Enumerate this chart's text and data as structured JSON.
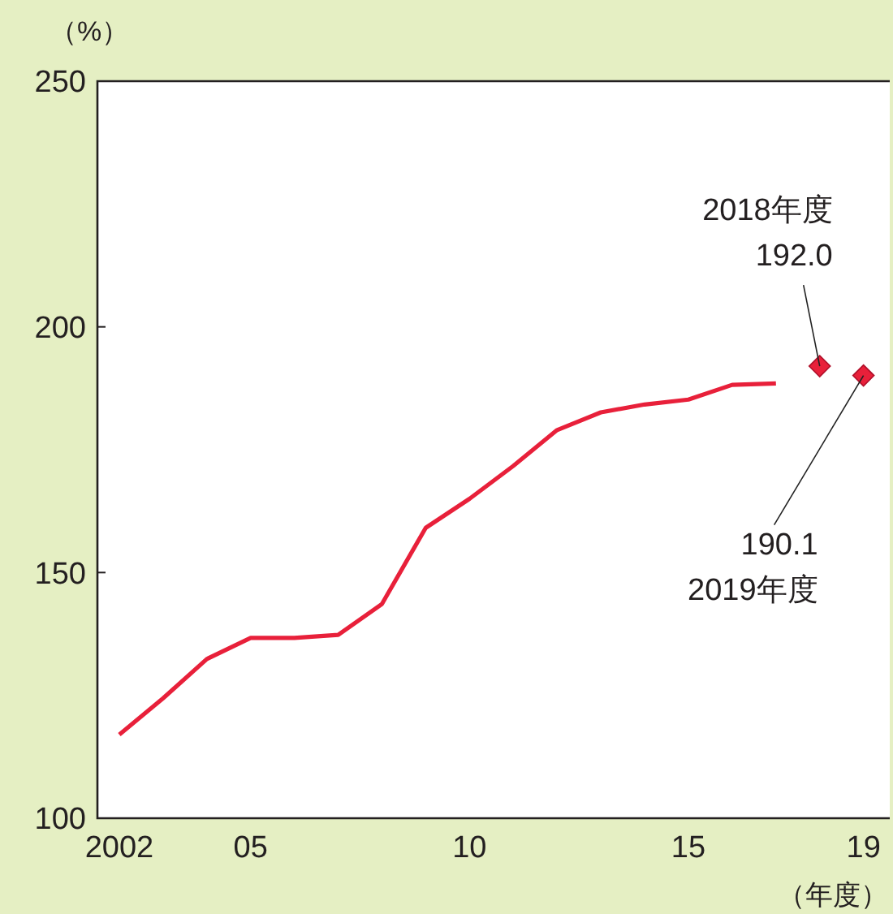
{
  "chart_data": {
    "type": "line",
    "ylabel": "（%）",
    "xlabel": "（年度）",
    "xlim": [
      2001.5,
      2019.6
    ],
    "ylim": [
      100,
      250
    ],
    "yticks": [
      100,
      150,
      200,
      250
    ],
    "xticks": [
      {
        "value": 2002,
        "label": "2002"
      },
      {
        "value": 2005,
        "label": "05"
      },
      {
        "value": 2010,
        "label": "10"
      },
      {
        "value": 2015,
        "label": "15"
      },
      {
        "value": 2019,
        "label": "19"
      }
    ],
    "grid": false,
    "series": [
      {
        "color": "#e8203a",
        "marker": "none",
        "line_style": "solid",
        "x": [
          2002,
          2003,
          2004,
          2005,
          2006,
          2007,
          2008,
          2009,
          2010,
          2011,
          2012,
          2013,
          2014,
          2015,
          2016,
          2017
        ],
        "values": [
          117,
          124.4,
          132.4,
          136.7,
          136.7,
          137.3,
          143.6,
          159.1,
          165,
          171.7,
          179,
          182.6,
          184.2,
          185.2,
          188.2,
          188.5
        ]
      },
      {
        "type": "scatter",
        "color": "#e8203a",
        "marker": "diamond",
        "x": [
          2018,
          2019
        ],
        "values": [
          192.0,
          190.1
        ]
      }
    ],
    "annotations": [
      {
        "text": "2018年度\n192.0",
        "x": 2018,
        "y": 192.0
      },
      {
        "text": "190.1\n2019年度",
        "x": 2019,
        "y": 190.1
      }
    ]
  }
}
